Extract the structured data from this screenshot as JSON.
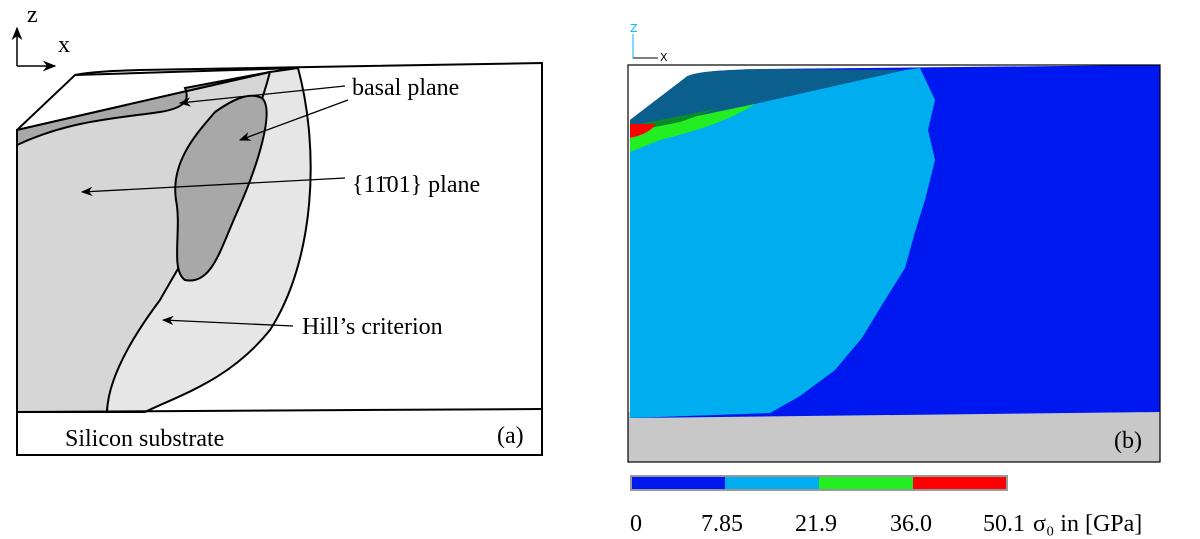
{
  "panel_a": {
    "axes": {
      "z": "z",
      "x": "x"
    },
    "labels": {
      "basal": "basal plane",
      "pyramidal": "{11̄01} plane",
      "hill": "Hill’s criterion",
      "substrate": "Silicon substrate"
    },
    "tag": "(a)"
  },
  "panel_b": {
    "axes": {
      "z": "Z",
      "x": "X"
    },
    "tag": "(b)",
    "colorbar": {
      "ticks": [
        "0",
        "7.85",
        "21.9",
        "36.0",
        "50.1"
      ],
      "unit": "σ₀ in [GPa]"
    }
  }
}
